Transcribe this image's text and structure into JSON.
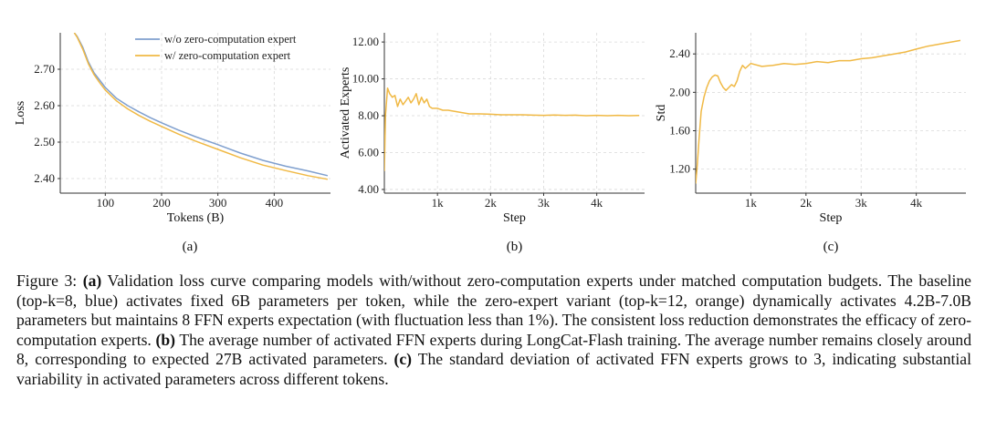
{
  "chart_data": [
    {
      "type": "line",
      "panel_label": "(a)",
      "xlabel": "Tokens (B)",
      "ylabel": "Loss",
      "xlim": [
        20,
        500
      ],
      "ylim": [
        2.36,
        2.8
      ],
      "xticks": [
        100,
        200,
        300,
        400
      ],
      "xtick_labels": [
        "100",
        "200",
        "300",
        "400"
      ],
      "yticks": [
        2.4,
        2.5,
        2.6,
        2.7
      ],
      "ytick_labels": [
        "2.40",
        "2.50",
        "2.60",
        "2.70"
      ],
      "grid": true,
      "legend_position": "top-right",
      "series": [
        {
          "name": "w/o zero-computation expert",
          "color": "#7f9fce",
          "x": [
            45,
            50,
            60,
            70,
            80,
            90,
            100,
            120,
            140,
            160,
            180,
            200,
            230,
            260,
            300,
            340,
            380,
            420,
            460,
            495
          ],
          "y": [
            2.8,
            2.79,
            2.76,
            2.72,
            2.69,
            2.67,
            2.65,
            2.62,
            2.6,
            2.583,
            2.567,
            2.553,
            2.533,
            2.515,
            2.493,
            2.47,
            2.45,
            2.434,
            2.421,
            2.408
          ]
        },
        {
          "name": "w/ zero-computation expert",
          "color": "#f0b945",
          "x": [
            45,
            50,
            60,
            70,
            80,
            90,
            100,
            120,
            140,
            160,
            180,
            200,
            230,
            260,
            300,
            340,
            380,
            420,
            460,
            495
          ],
          "y": [
            2.8,
            2.788,
            2.755,
            2.715,
            2.685,
            2.663,
            2.643,
            2.613,
            2.591,
            2.573,
            2.557,
            2.543,
            2.522,
            2.503,
            2.48,
            2.457,
            2.437,
            2.422,
            2.408,
            2.398
          ]
        }
      ]
    },
    {
      "type": "line",
      "panel_label": "(b)",
      "xlabel": "Step",
      "ylabel": "Activated  Experts",
      "xlim": [
        0,
        4900
      ],
      "ylim": [
        3.8,
        12.5
      ],
      "xticks": [
        1000,
        2000,
        3000,
        4000
      ],
      "xtick_labels": [
        "1k",
        "2k",
        "3k",
        "4k"
      ],
      "yticks": [
        4,
        6,
        8,
        10,
        12
      ],
      "ytick_labels": [
        "4.00",
        "6.00",
        "8.00",
        "10.00",
        "12.00"
      ],
      "grid": true,
      "series": [
        {
          "color": "#f0b945",
          "x": [
            0,
            20,
            60,
            100,
            150,
            200,
            250,
            300,
            350,
            400,
            450,
            500,
            550,
            600,
            650,
            700,
            750,
            800,
            850,
            900,
            1000,
            1100,
            1200,
            1300,
            1400,
            1500,
            1600,
            1800,
            2000,
            2200,
            2400,
            2600,
            2800,
            3000,
            3200,
            3400,
            3600,
            3800,
            4000,
            4200,
            4400,
            4600,
            4800
          ],
          "y": [
            5.0,
            8.0,
            9.5,
            9.2,
            9.0,
            9.1,
            8.5,
            8.9,
            8.6,
            8.8,
            9.0,
            8.7,
            8.9,
            9.2,
            8.6,
            9.0,
            8.7,
            8.9,
            8.5,
            8.4,
            8.4,
            8.3,
            8.3,
            8.25,
            8.2,
            8.15,
            8.1,
            8.1,
            8.08,
            8.05,
            8.05,
            8.05,
            8.03,
            8.02,
            8.04,
            8.02,
            8.03,
            8.0,
            8.02,
            8.0,
            8.02,
            8.0,
            8.01
          ]
        }
      ]
    },
    {
      "type": "line",
      "panel_label": "(c)",
      "xlabel": "Step",
      "ylabel": "Std",
      "xlim": [
        0,
        4900
      ],
      "ylim": [
        0.95,
        2.62
      ],
      "xticks": [
        1000,
        2000,
        3000,
        4000
      ],
      "xtick_labels": [
        "1k",
        "2k",
        "3k",
        "4k"
      ],
      "yticks": [
        1.2,
        1.6,
        2.0,
        2.4
      ],
      "ytick_labels": [
        "1.20",
        "1.60",
        "2.00",
        "2.40"
      ],
      "grid": true,
      "series": [
        {
          "color": "#f0b945",
          "x": [
            0,
            30,
            60,
            100,
            150,
            200,
            250,
            300,
            350,
            400,
            450,
            500,
            550,
            600,
            650,
            700,
            750,
            800,
            850,
            900,
            1000,
            1200,
            1400,
            1600,
            1800,
            2000,
            2200,
            2400,
            2600,
            2800,
            3000,
            3200,
            3400,
            3600,
            3800,
            4000,
            4200,
            4400,
            4600,
            4800
          ],
          "y": [
            1.05,
            1.25,
            1.5,
            1.8,
            1.95,
            2.05,
            2.12,
            2.16,
            2.18,
            2.17,
            2.1,
            2.05,
            2.02,
            2.05,
            2.08,
            2.06,
            2.12,
            2.22,
            2.28,
            2.25,
            2.3,
            2.27,
            2.28,
            2.3,
            2.29,
            2.3,
            2.32,
            2.31,
            2.33,
            2.33,
            2.35,
            2.36,
            2.38,
            2.4,
            2.42,
            2.45,
            2.48,
            2.5,
            2.52,
            2.54
          ]
        }
      ]
    }
  ],
  "caption": {
    "prefix": "Figure 3: ",
    "a_label": "(a)",
    "a_text": " Validation loss curve comparing models with/without zero-computation experts under matched computation budgets. The baseline (top-k=8, blue) activates fixed 6B parameters per token, while the zero-expert variant (top-k=12, orange) dynamically activates 4.2B-7.0B parameters but maintains 8 FFN experts expectation (with fluctuation less than 1%). The consistent loss reduction demonstrates the efficacy of zero-computation experts. ",
    "b_label": "(b)",
    "b_text": " The average number of activated FFN experts during LongCat-Flash training. The average number remains closely around 8, corresponding to expected 27B activated parameters. ",
    "c_label": "(c)",
    "c_text": " The standard deviation of activated FFN experts grows to 3, indicating substantial variability in activated parameters across different tokens."
  }
}
